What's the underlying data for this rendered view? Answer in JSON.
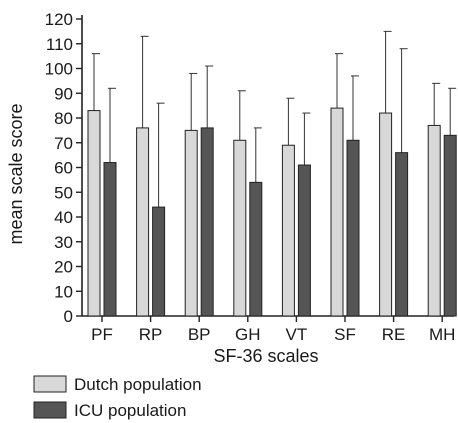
{
  "chart_data": {
    "type": "bar",
    "categories": [
      "PF",
      "RP",
      "BP",
      "GH",
      "VT",
      "SF",
      "RE",
      "MH"
    ],
    "series": [
      {
        "name": "Dutch population",
        "values": [
          83,
          76,
          75,
          71,
          69,
          84,
          82,
          77
        ],
        "error_upper": [
          106,
          113,
          98,
          91,
          88,
          106,
          115,
          94
        ],
        "color": "#d8d8d8"
      },
      {
        "name": "ICU population",
        "values": [
          62,
          44,
          76,
          54,
          61,
          71,
          66,
          73
        ],
        "error_upper": [
          92,
          86,
          101,
          76,
          82,
          97,
          108,
          92
        ],
        "color": "#555555"
      }
    ],
    "xlabel": "SF-36 scales",
    "ylabel": "mean scale score",
    "ylim": [
      0,
      120
    ],
    "yticks": [
      0,
      10,
      20,
      30,
      40,
      50,
      60,
      70,
      80,
      90,
      100,
      110,
      120
    ],
    "grid": false,
    "legend_position": "bottom-left"
  }
}
